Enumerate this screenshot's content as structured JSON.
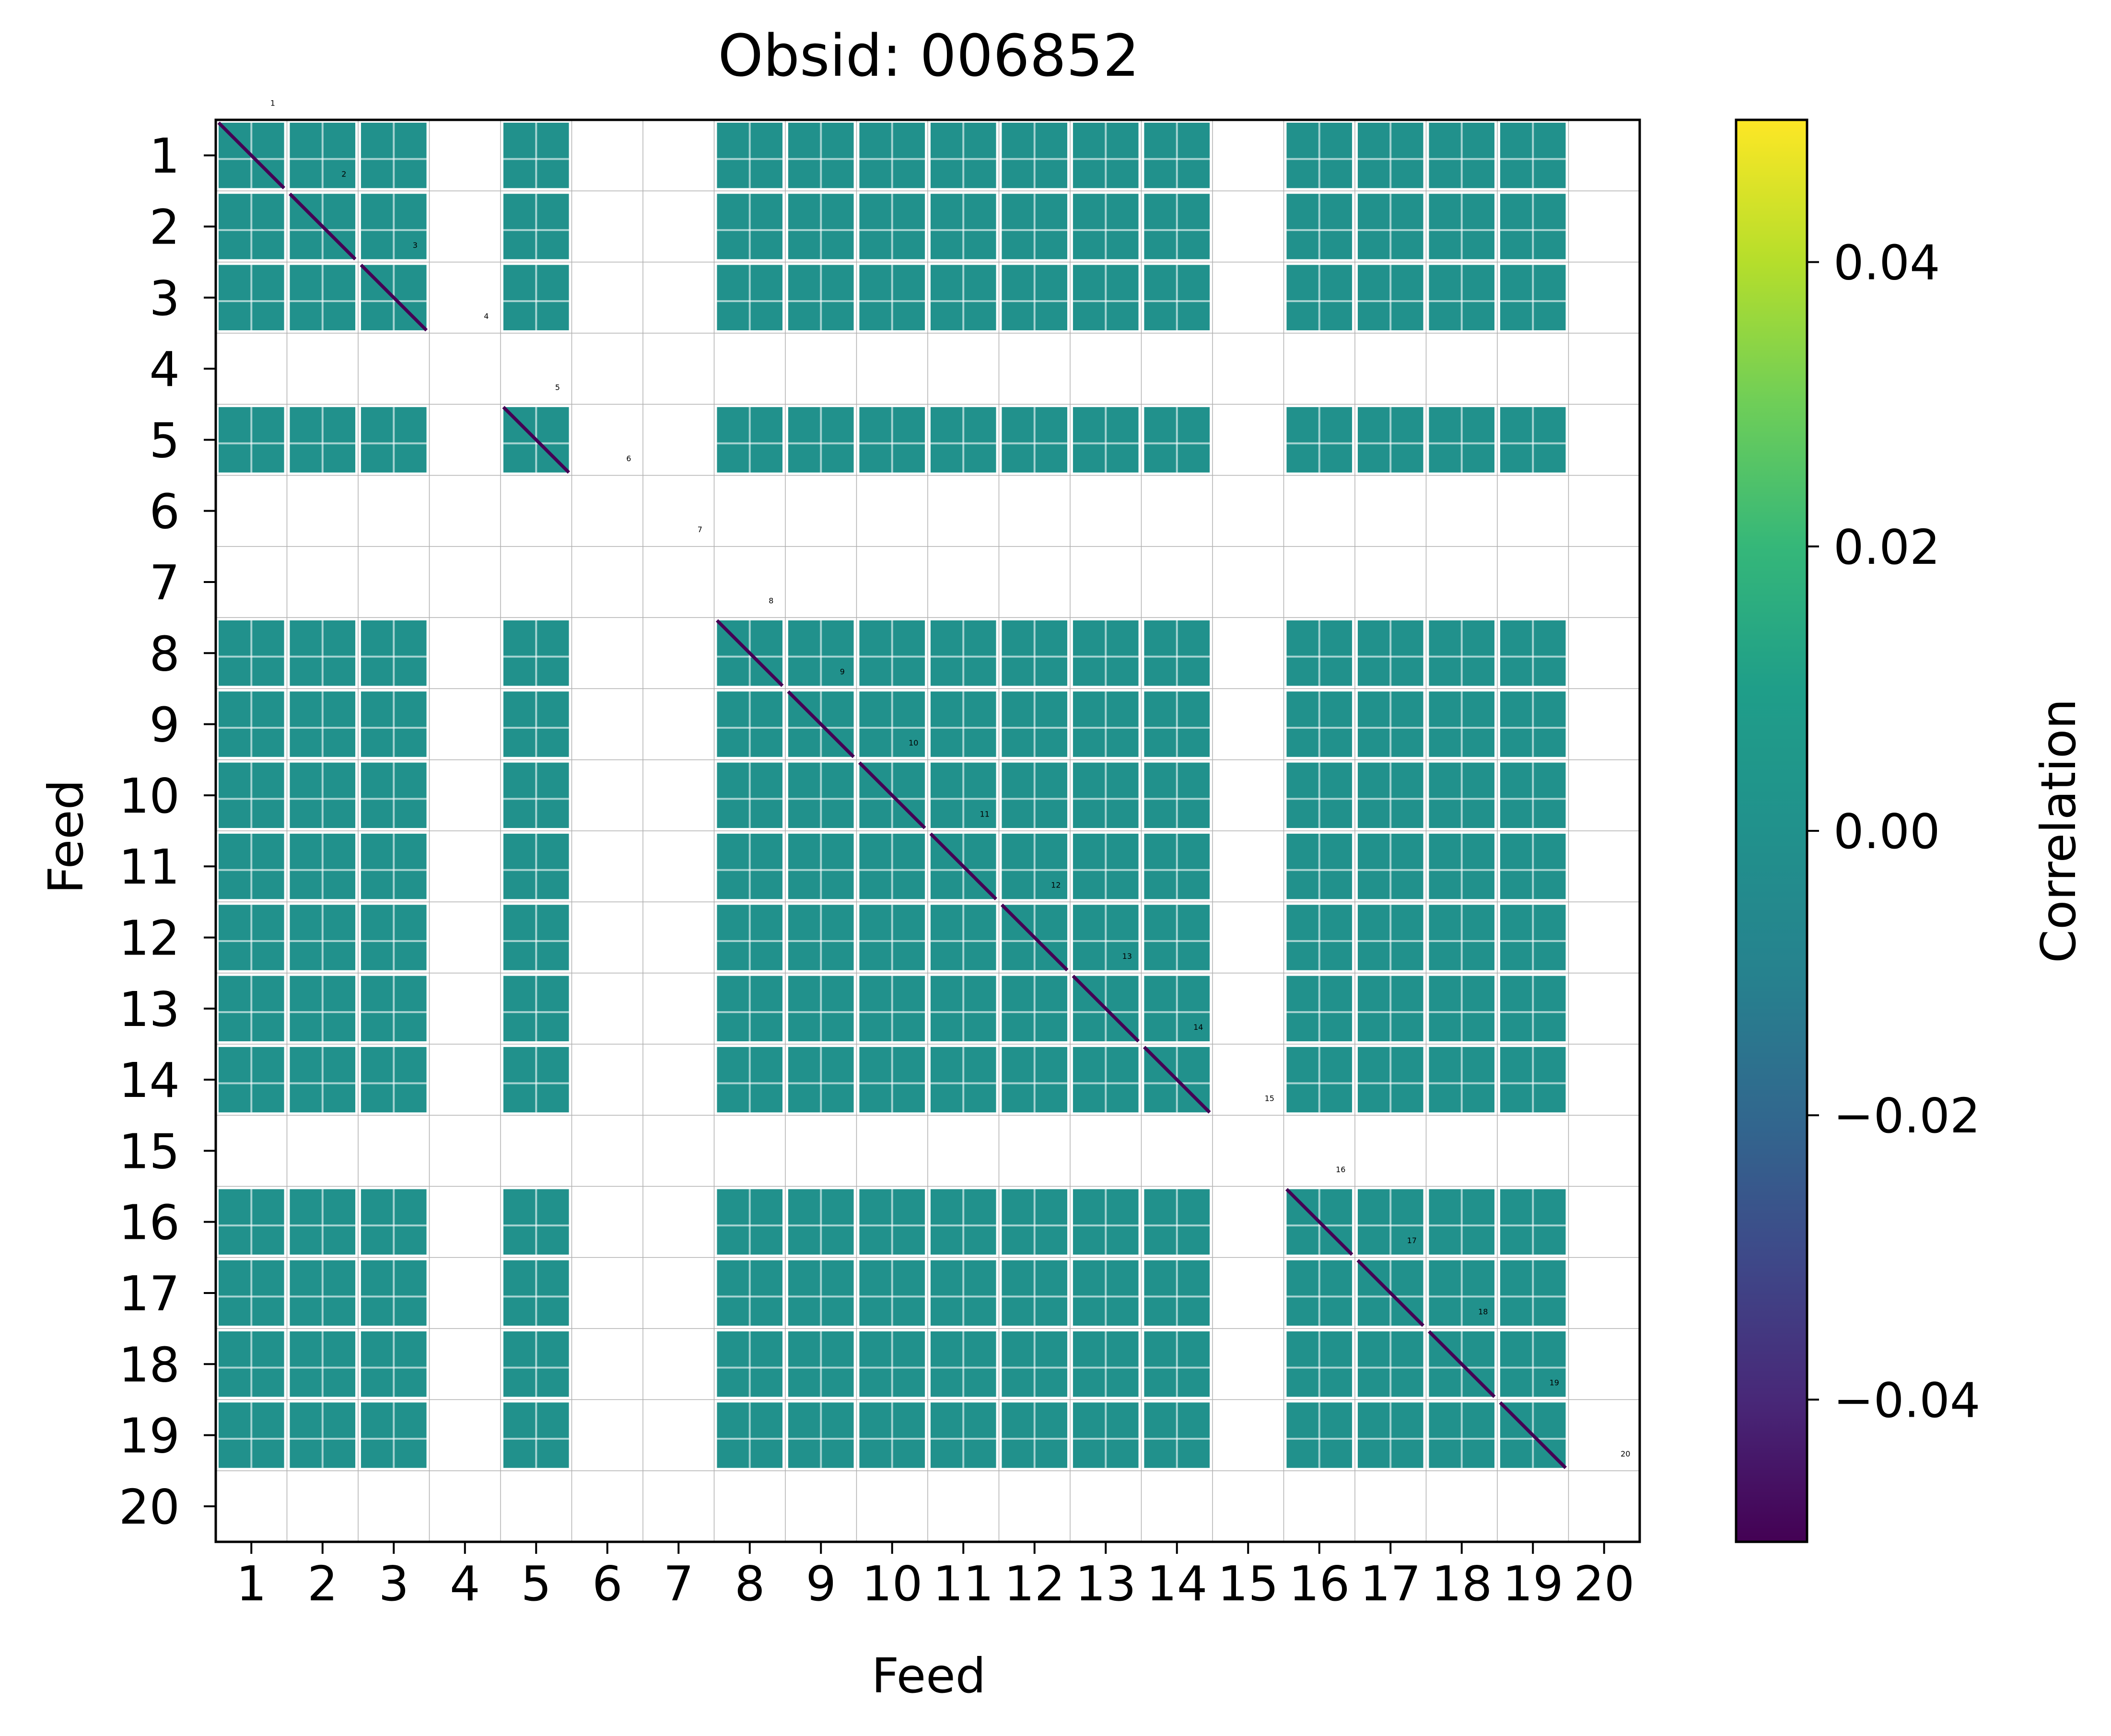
{
  "chart_data": {
    "type": "heatmap",
    "title": "Obsid: 006852",
    "xlabel": "Feed",
    "ylabel": "Feed",
    "colorbar_label": "Correlation",
    "feeds": [
      "1",
      "2",
      "3",
      "4",
      "5",
      "6",
      "7",
      "8",
      "9",
      "10",
      "11",
      "12",
      "13",
      "14",
      "15",
      "16",
      "17",
      "18",
      "19",
      "20"
    ],
    "active_feeds": [
      1,
      2,
      3,
      5,
      8,
      9,
      10,
      11,
      12,
      13,
      14,
      16,
      17,
      18,
      19
    ],
    "block_value": 0.0,
    "diagonal_value": -0.05,
    "cmap": "viridis",
    "vmin": -0.05,
    "vmax": 0.05,
    "colorbar_ticks": [
      {
        "value": 0.04,
        "label": "0.04"
      },
      {
        "value": 0.02,
        "label": "0.02"
      },
      {
        "value": 0.0,
        "label": "0.00"
      },
      {
        "value": -0.02,
        "label": "−0.02"
      },
      {
        "value": -0.04,
        "label": "−0.04"
      }
    ],
    "feed_annotations": [
      "1",
      "2",
      "3",
      "4",
      "5",
      "6",
      "7",
      "8",
      "9",
      "10",
      "11",
      "12",
      "13",
      "14",
      "15",
      "16",
      "17",
      "18",
      "19",
      "20"
    ],
    "colors": {
      "block": "#21918c",
      "diagonal": "#482878",
      "grid": "#b0b0b0",
      "viridis": [
        "#440154",
        "#482878",
        "#3e4989",
        "#31688e",
        "#26828e",
        "#21918c",
        "#1f9e89",
        "#35b779",
        "#6ece58",
        "#b5de2b",
        "#fde725"
      ]
    }
  }
}
